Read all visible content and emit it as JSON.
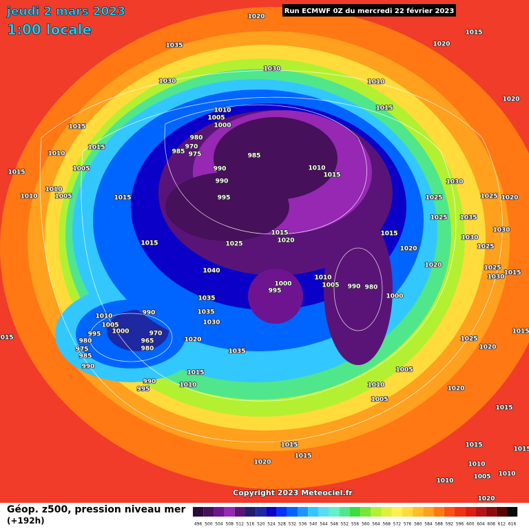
{
  "header": {
    "date": "jeudi 2 mars 2023",
    "time": "1:00 locale",
    "run": "Run ECMWF 0Z du mercredi 22 février 2023"
  },
  "footer": {
    "title": "Géop. z500, pression niveau mer",
    "lead": "(+192h)",
    "copyright": "Copyright 2023 Meteociel.fr"
  },
  "colorbar": {
    "values": [
      496,
      500,
      504,
      508,
      512,
      516,
      520,
      524,
      528,
      532,
      536,
      540,
      544,
      548,
      552,
      556,
      560,
      564,
      568,
      572,
      576,
      580,
      584,
      588,
      592,
      596,
      600,
      604,
      608,
      612,
      616
    ],
    "colors": [
      "#2a0a3c",
      "#46105a",
      "#6e1490",
      "#9628b4",
      "#5a1478",
      "#1e1e6e",
      "#1e28a0",
      "#0a00c8",
      "#0032ff",
      "#0064ff",
      "#1e96ff",
      "#32c8ff",
      "#5adcf0",
      "#64f0c8",
      "#50e68c",
      "#3cdc3c",
      "#78e632",
      "#b4f032",
      "#dcf03c",
      "#fff050",
      "#ffdc3c",
      "#ffbe28",
      "#ffa01e",
      "#ff7814",
      "#ff5014",
      "#f03214",
      "#dc1e14",
      "#b41414",
      "#8c0a0a",
      "#5a0505",
      "#0a0a0a"
    ]
  },
  "isobar_labels": [
    "1020",
    "1035",
    "1030",
    "1030",
    "1015",
    "1020",
    "1010",
    "1015",
    "1020",
    "1015",
    "1015",
    "1010",
    "1005",
    "1015",
    "1010",
    "1005",
    "1010",
    "1015",
    "1010",
    "1005",
    "1000",
    "980",
    "970",
    "975",
    "985",
    "985",
    "990",
    "990",
    "995",
    "1010",
    "1015",
    "1030",
    "1025",
    "1025",
    "1020",
    "1025",
    "1035",
    "1015",
    "1020",
    "1025",
    "1015",
    "1015",
    "1030",
    "1025",
    "1020",
    "1030",
    "1020",
    "1040",
    "1025",
    "1015",
    "1010",
    "1005",
    "1000",
    "995",
    "990",
    "980",
    "1000",
    "1030",
    "1035",
    "1010",
    "1005",
    "990",
    "1035",
    "1030",
    "995",
    "980",
    "975",
    "985",
    "965",
    "980",
    "970",
    "1000",
    "1020",
    "1015",
    "1015",
    "1025",
    "1020",
    "1035",
    "990",
    "1015",
    "1005",
    "990",
    "995",
    "1010",
    "1010",
    "1020",
    "1005",
    "1015",
    "1015",
    "1015",
    "1020",
    "1015",
    "1015",
    "1010",
    "1010",
    "1005",
    "1010",
    "1020"
  ]
}
